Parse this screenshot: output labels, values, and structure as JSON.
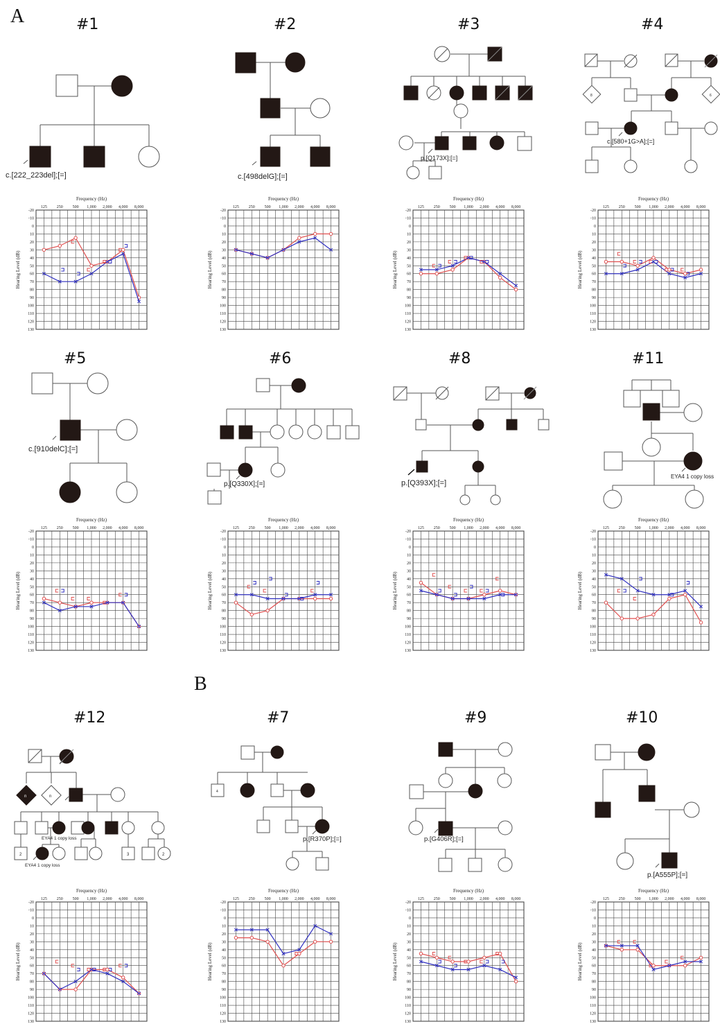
{
  "figure": {
    "section_labels": [
      "A",
      "B"
    ],
    "panels": [
      {
        "id": "#1",
        "section": "A",
        "variant": "c.[222_223del];[=]",
        "audiogram": {
          "right": [
            30,
            25,
            15,
            50,
            45,
            30,
            90
          ],
          "left": [
            60,
            70,
            70,
            60,
            45,
            35,
            95
          ],
          "right_bone": [
            null,
            null,
            20,
            55,
            45,
            30,
            null
          ],
          "left_bone": [
            null,
            55,
            60,
            null,
            45,
            25,
            null
          ]
        }
      },
      {
        "id": "#2",
        "section": "A",
        "variant": "c.[498delG];[=]",
        "audiogram": {
          "right": [
            30,
            35,
            40,
            30,
            15,
            10,
            10
          ],
          "left": [
            30,
            35,
            40,
            30,
            20,
            15,
            30
          ],
          "right_bone": [
            null,
            null,
            null,
            null,
            null,
            null,
            null
          ],
          "left_bone": [
            null,
            null,
            null,
            null,
            null,
            null,
            null
          ]
        }
      },
      {
        "id": "#3",
        "section": "A",
        "variant": "p.[Q173X];[=]",
        "audiogram": {
          "right": [
            60,
            60,
            55,
            40,
            45,
            65,
            80
          ],
          "left": [
            55,
            55,
            50,
            40,
            45,
            60,
            75
          ],
          "right_bone": [
            null,
            50,
            45,
            40,
            45,
            null,
            null
          ],
          "left_bone": [
            null,
            50,
            45,
            40,
            45,
            null,
            null
          ]
        }
      },
      {
        "id": "#4",
        "section": "A",
        "variant": "c.[580+1G>A];[=]",
        "audiogram": {
          "right": [
            45,
            45,
            50,
            40,
            55,
            60,
            55
          ],
          "left": [
            60,
            60,
            55,
            45,
            60,
            65,
            60
          ],
          "right_bone": [
            null,
            35,
            45,
            45,
            55,
            55,
            null
          ],
          "left_bone": [
            null,
            50,
            45,
            45,
            55,
            60,
            null
          ]
        }
      },
      {
        "id": "#5",
        "section": "A",
        "variant": "c.[910delC];[=]",
        "audiogram": {
          "right": [
            65,
            70,
            75,
            70,
            70,
            70,
            100
          ],
          "left": [
            70,
            80,
            75,
            75,
            70,
            70,
            100
          ],
          "right_bone": [
            null,
            55,
            65,
            65,
            70,
            60,
            null
          ],
          "left_bone": [
            null,
            55,
            null,
            null,
            null,
            60,
            null
          ]
        }
      },
      {
        "id": "#6",
        "section": "A",
        "variant": "p.[Q330X];[=]",
        "audiogram": {
          "right": [
            70,
            85,
            80,
            65,
            65,
            65,
            65
          ],
          "left": [
            60,
            60,
            65,
            65,
            65,
            60,
            60
          ],
          "right_bone": [
            null,
            50,
            55,
            null,
            null,
            55,
            null
          ],
          "left_bone": [
            null,
            45,
            40,
            60,
            65,
            45,
            null
          ]
        }
      },
      {
        "id": "#8",
        "section": "A",
        "variant": "p.[Q393X];[=]",
        "audiogram": {
          "right": [
            45,
            60,
            65,
            65,
            60,
            55,
            60
          ],
          "left": [
            55,
            60,
            65,
            65,
            65,
            60,
            60
          ],
          "right_bone": [
            null,
            35,
            50,
            55,
            55,
            40,
            null
          ],
          "left_bone": [
            null,
            55,
            60,
            50,
            55,
            60,
            null
          ]
        }
      },
      {
        "id": "#11",
        "section": "A",
        "variant": "EYA4 1 copy loss",
        "audiogram": {
          "right": [
            70,
            90,
            90,
            85,
            65,
            60,
            95
          ],
          "left": [
            35,
            40,
            55,
            60,
            60,
            55,
            75
          ],
          "right_bone": [
            null,
            55,
            65,
            null,
            null,
            null,
            null
          ],
          "left_bone": [
            null,
            55,
            40,
            null,
            60,
            45,
            null
          ]
        }
      },
      {
        "id": "#12",
        "section": "B",
        "variant": "EYA4 1 copy loss",
        "variant2": "EYA4 1 copy loss",
        "audiogram": {
          "right": [
            70,
            90,
            90,
            65,
            65,
            75,
            95
          ],
          "left": [
            70,
            90,
            80,
            65,
            70,
            80,
            95
          ],
          "right_bone": [
            null,
            55,
            60,
            65,
            65,
            60,
            null
          ],
          "left_bone": [
            null,
            null,
            65,
            65,
            65,
            60,
            null
          ]
        }
      },
      {
        "id": "#7",
        "section": "B",
        "variant": "p.[R370P];[=]",
        "audiogram": {
          "right": [
            25,
            25,
            30,
            60,
            45,
            30,
            30
          ],
          "left": [
            15,
            15,
            15,
            45,
            40,
            10,
            20
          ],
          "right_bone": [
            null,
            null,
            null,
            null,
            45,
            null,
            null
          ],
          "left_bone": [
            null,
            null,
            null,
            null,
            null,
            null,
            null
          ]
        }
      },
      {
        "id": "#9",
        "section": "B",
        "variant": "p.[G406R];[=]",
        "audiogram": {
          "right": [
            45,
            50,
            55,
            55,
            50,
            45,
            80
          ],
          "left": [
            55,
            60,
            65,
            65,
            60,
            65,
            75
          ],
          "right_bone": [
            null,
            45,
            50,
            55,
            55,
            45,
            null
          ],
          "left_bone": [
            null,
            55,
            60,
            null,
            55,
            55,
            null
          ]
        }
      },
      {
        "id": "#10",
        "section": "B",
        "variant": "p.[A555P];[=]",
        "audiogram": {
          "right": [
            35,
            40,
            40,
            60,
            60,
            60,
            50
          ],
          "left": [
            35,
            35,
            35,
            65,
            60,
            55,
            55
          ],
          "right_bone": [
            null,
            30,
            30,
            60,
            55,
            50,
            null
          ],
          "left_bone": [
            null,
            null,
            null,
            null,
            null,
            null,
            null
          ]
        }
      }
    ],
    "audiogram_common": {
      "xlabel": "Frequency (Hz)",
      "ylabel": "Hearing Level (dB)",
      "x_ticks": [
        "125",
        "250",
        "500",
        "1,000",
        "2,000",
        "4,000",
        "8,000"
      ],
      "y_ticks": [
        -20,
        -10,
        0,
        10,
        20,
        30,
        40,
        50,
        60,
        70,
        80,
        90,
        100,
        110,
        120,
        130
      ],
      "ylim": [
        -20,
        130
      ],
      "right_ear_color": "#e05050",
      "left_ear_color": "#3030c0"
    }
  }
}
